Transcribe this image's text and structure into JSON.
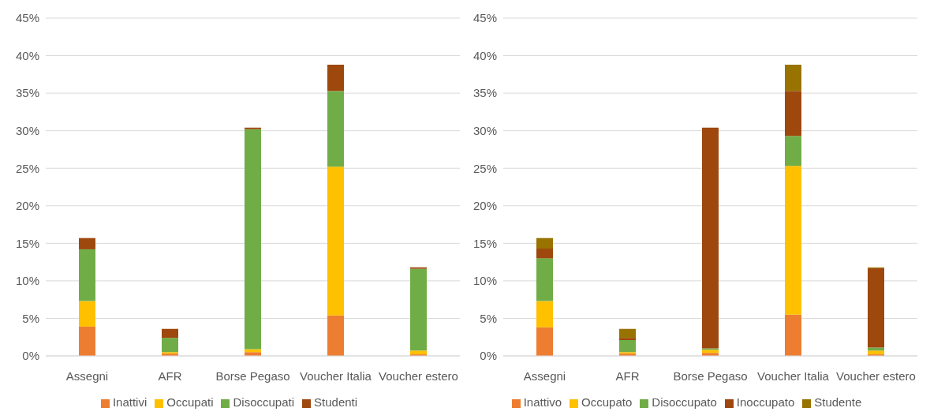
{
  "chart_data": [
    {
      "type": "bar",
      "stacked": true,
      "categories": [
        "Assegni",
        "AFR",
        "Borse Pegaso",
        "Voucher Italia",
        "Voucher estero"
      ],
      "series": [
        {
          "name": "Inattivi",
          "color": "#ed7d31",
          "values": [
            3.9,
            0.3,
            0.5,
            5.4,
            0.2
          ]
        },
        {
          "name": "Occupati",
          "color": "#ffc000",
          "values": [
            3.4,
            0.2,
            0.4,
            19.8,
            0.5
          ]
        },
        {
          "name": "Disoccupati",
          "color": "#70ad47",
          "values": [
            6.9,
            1.9,
            29.3,
            10.1,
            10.9
          ]
        },
        {
          "name": "Studenti",
          "color": "#9e480e",
          "values": [
            1.5,
            1.2,
            0.2,
            3.5,
            0.2
          ]
        }
      ],
      "ylim": [
        0,
        45
      ],
      "yticks": [
        {
          "value": 0,
          "label": "0%"
        },
        {
          "value": 5,
          "label": "5%"
        },
        {
          "value": 10,
          "label": "10%"
        },
        {
          "value": 15,
          "label": "15%"
        },
        {
          "value": 20,
          "label": "20%"
        },
        {
          "value": 25,
          "label": "25%"
        },
        {
          "value": 30,
          "label": "30%"
        },
        {
          "value": 35,
          "label": "35%"
        },
        {
          "value": 40,
          "label": "40%"
        },
        {
          "value": 45,
          "label": "45%"
        }
      ],
      "grid": "y",
      "legend": "bottom"
    },
    {
      "type": "bar",
      "stacked": true,
      "categories": [
        "Assegni",
        "AFR",
        "Borse Pegaso",
        "Voucher Italia",
        "Voucher estero"
      ],
      "series": [
        {
          "name": "Inattivo",
          "color": "#ed7d31",
          "values": [
            3.8,
            0.3,
            0.4,
            5.5,
            0.2
          ]
        },
        {
          "name": "Occupato",
          "color": "#ffc000",
          "values": [
            3.5,
            0.2,
            0.4,
            19.8,
            0.5
          ]
        },
        {
          "name": "Disoccupato",
          "color": "#70ad47",
          "values": [
            5.7,
            1.6,
            0.2,
            4.0,
            0.4
          ]
        },
        {
          "name": "Inoccupato",
          "color": "#9e480e",
          "values": [
            1.3,
            0.3,
            29.4,
            6.0,
            10.6
          ]
        },
        {
          "name": "Studente",
          "color": "#997300",
          "values": [
            1.4,
            1.2,
            null,
            3.5,
            0.1
          ]
        }
      ],
      "ylim": [
        0,
        45
      ],
      "yticks": [
        {
          "value": 0,
          "label": "0%"
        },
        {
          "value": 5,
          "label": "5%"
        },
        {
          "value": 10,
          "label": "10%"
        },
        {
          "value": 15,
          "label": "15%"
        },
        {
          "value": 20,
          "label": "20%"
        },
        {
          "value": 25,
          "label": "25%"
        },
        {
          "value": 30,
          "label": "30%"
        },
        {
          "value": 35,
          "label": "35%"
        },
        {
          "value": 40,
          "label": "40%"
        },
        {
          "value": 45,
          "label": "45%"
        }
      ],
      "grid": "y",
      "legend": "bottom"
    }
  ]
}
